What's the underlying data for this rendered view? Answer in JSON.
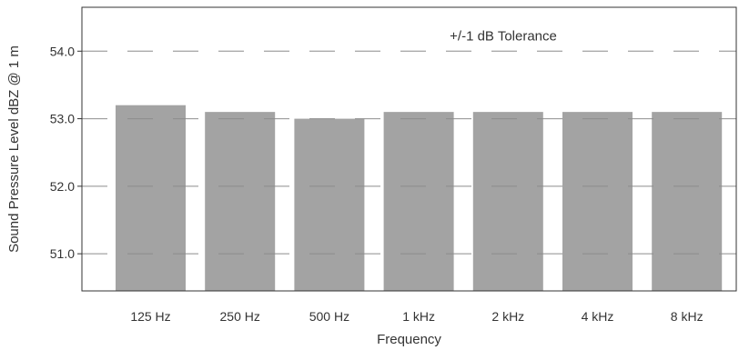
{
  "chart_data": {
    "type": "bar",
    "title": "",
    "xlabel": "Frequency",
    "ylabel": "Sound Pressure Level dBZ @ 1 m",
    "categories": [
      "125 Hz",
      "250 Hz",
      "500 Hz",
      "1 kHz",
      "2 kHz",
      "4 kHz",
      "8 kHz"
    ],
    "values": [
      53.2,
      53.1,
      53.0,
      53.1,
      53.1,
      53.1,
      53.1
    ],
    "ylim": [
      50.45,
      54.65
    ],
    "yticks": [
      51.0,
      52.0,
      53.0,
      54.0
    ],
    "ytick_labels": [
      "51.0",
      "52.0",
      "53.0",
      "54.0"
    ],
    "grid": "dashed horizontal",
    "annotation": "+/-1 dB Tolerance",
    "colors": {
      "bar": "#a3a3a3",
      "grid": "#7a7a7a",
      "axis": "#333333",
      "text": "#333333"
    }
  }
}
